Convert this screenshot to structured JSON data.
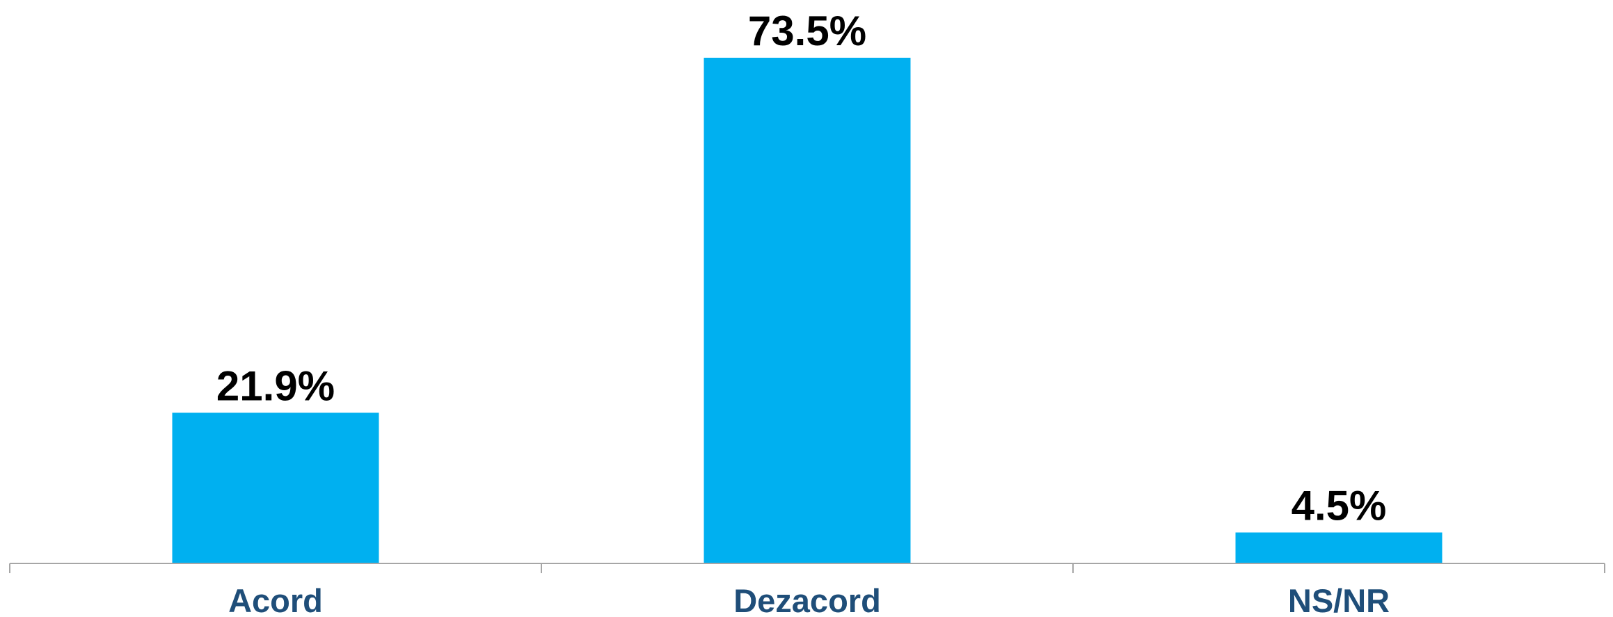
{
  "chart_data": {
    "type": "bar",
    "categories": [
      "Acord",
      "Dezacord",
      "NS/NR"
    ],
    "values": [
      21.9,
      73.5,
      4.5
    ],
    "value_labels": [
      "21.9%",
      "73.5%",
      "4.5%"
    ],
    "title": "",
    "xlabel": "",
    "ylabel": "",
    "ylim": [
      0,
      73.5
    ],
    "grid": false,
    "legend": "none"
  },
  "colors": {
    "bar": "#00b0f0",
    "value_label": "#000000",
    "category_label": "#1f4e79",
    "axis": "#a6a6a6"
  }
}
